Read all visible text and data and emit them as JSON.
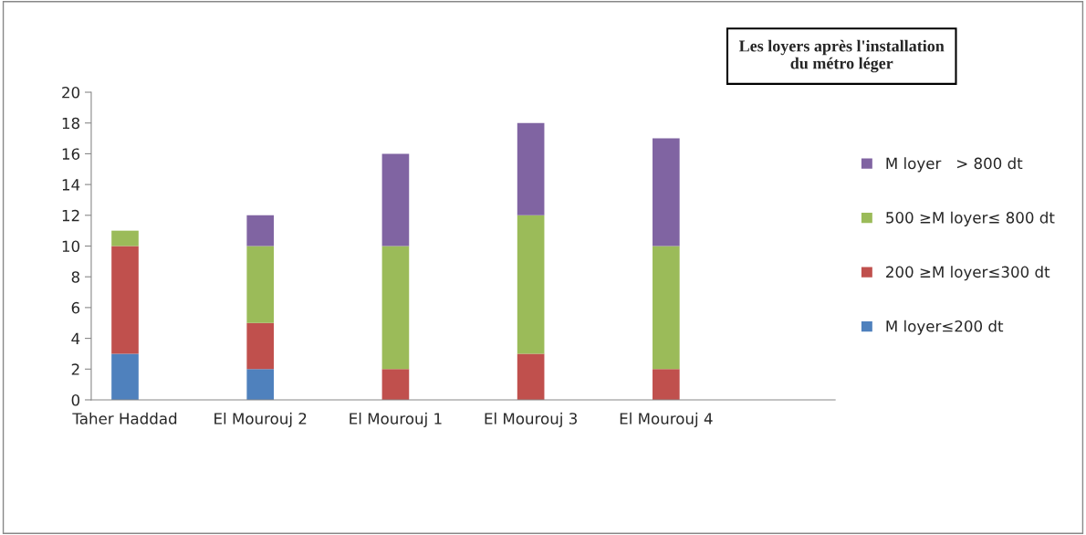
{
  "chart_data": {
    "type": "bar",
    "title": "Les loyers après l'installation\ndu métro léger",
    "stacked": true,
    "categories": [
      "Taher Haddad",
      null,
      "El Mourouj 2",
      null,
      "El Mourouj 1",
      null,
      "El Mourouj 3",
      null,
      "El Mourouj 4",
      null,
      null
    ],
    "series": [
      {
        "name": "M loyer≤200 dt",
        "color": "#4f81bd",
        "values": [
          3,
          null,
          2,
          null,
          null,
          null,
          null,
          null,
          null,
          null,
          null
        ]
      },
      {
        "name": "200 ≥M loyer≤300 dt",
        "color": "#c0504d",
        "values": [
          7,
          null,
          3,
          null,
          2,
          null,
          3,
          null,
          2,
          null,
          null
        ]
      },
      {
        "name": "500 ≥M loyer≤ 800 dt",
        "color": "#9bbb59",
        "values": [
          1,
          null,
          5,
          null,
          8,
          null,
          9,
          null,
          8,
          null,
          null
        ]
      },
      {
        "name": "M loyer   > 800 dt",
        "color": "#8064a2",
        "values": [
          null,
          null,
          2,
          null,
          6,
          null,
          6,
          null,
          7,
          null,
          null
        ]
      }
    ],
    "ylim": [
      0,
      20
    ],
    "yticks": [
      0,
      2,
      4,
      6,
      8,
      10,
      12,
      14,
      16,
      18,
      20
    ],
    "grid": false,
    "legend": "right"
  }
}
